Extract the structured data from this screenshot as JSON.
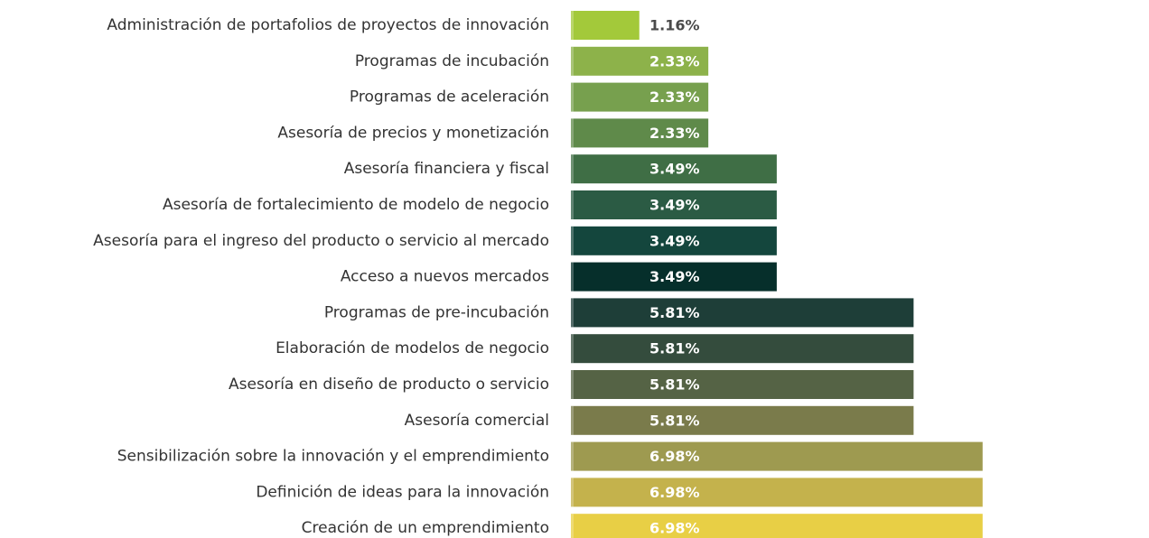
{
  "chart_data": {
    "type": "barh",
    "categories": [
      "Administración de portafolios de proyectos de innovación",
      "Programas de incubación",
      "Programas de aceleración",
      "Asesoría de precios y monetización",
      "Asesoría financiera y fiscal",
      "Asesoría de fortalecimiento de modelo de negocio",
      "Asesoría para el ingreso del producto o servicio al mercado",
      "Acceso a nuevos mercados",
      "Programas de pre-incubación",
      "Elaboración de modelos de negocio",
      "Asesoría en diseño de producto o servicio",
      "Asesoría comercial",
      "Sensibilización sobre la innovación y el emprendimiento",
      "Definición de ideas para la innovación",
      "Creación de un emprendimiento"
    ],
    "values": [
      1.16,
      2.33,
      2.33,
      2.33,
      3.49,
      3.49,
      3.49,
      3.49,
      5.81,
      5.81,
      5.81,
      5.81,
      6.98,
      6.98,
      6.98
    ],
    "value_labels": [
      "1.16%",
      "2.33%",
      "2.33%",
      "2.33%",
      "3.49%",
      "3.49%",
      "3.49%",
      "3.49%",
      "5.81%",
      "5.81%",
      "5.81%",
      "5.81%",
      "6.98%",
      "6.98%",
      "6.98%"
    ],
    "colors": [
      "#a3c93a",
      "#8db24a",
      "#77a04e",
      "#5f8a4a",
      "#3f6e45",
      "#2b5b44",
      "#14463d",
      "#062f2b",
      "#1e3e38",
      "#344c3d",
      "#556345",
      "#7a7b4b",
      "#9e9a50",
      "#c4b24c",
      "#e8cf45"
    ]
  }
}
